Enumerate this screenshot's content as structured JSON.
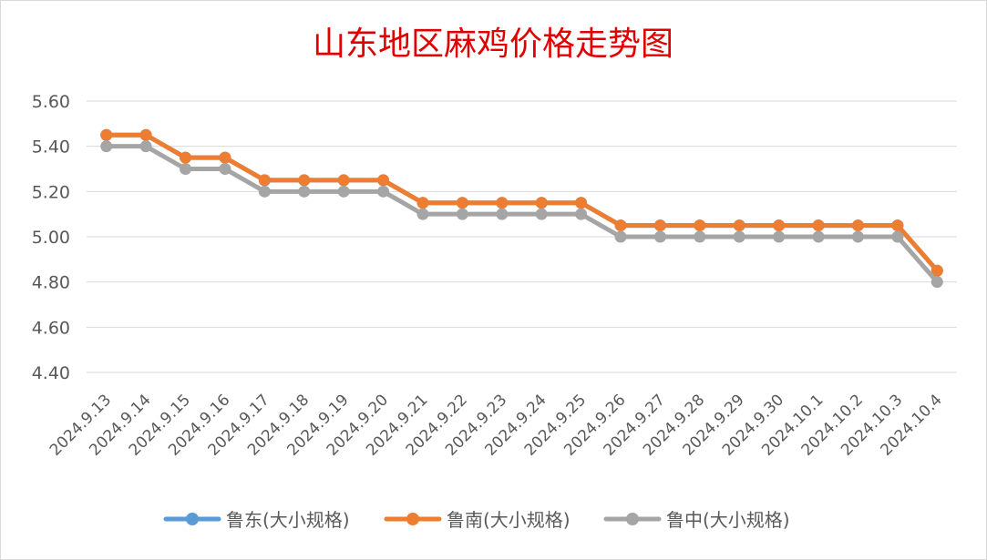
{
  "chart_data": {
    "type": "line",
    "title": "山东地区麻鸡价格走势图",
    "title_color": "#e00000",
    "categories": [
      "2024.9.13",
      "2024.9.14",
      "2024.9.15",
      "2024.9.16",
      "2024.9.17",
      "2024.9.18",
      "2024.9.19",
      "2024.9.20",
      "2024.9.21",
      "2024.9.22",
      "2024.9.23",
      "2024.9.24",
      "2024.9.25",
      "2024.9.26",
      "2024.9.27",
      "2024.9.28",
      "2024.9.29",
      "2024.9.30",
      "2024.10.1",
      "2024.10.2",
      "2024.10.3",
      "2024.10.4"
    ],
    "series": [
      {
        "name": "鲁东(大小规格)",
        "color": "#5b9bd5",
        "values": [
          5.45,
          5.45,
          5.35,
          5.35,
          5.25,
          5.25,
          5.25,
          5.25,
          5.15,
          5.15,
          5.15,
          5.15,
          5.15,
          5.05,
          5.05,
          5.05,
          5.05,
          5.05,
          5.05,
          5.05,
          5.05,
          4.85
        ]
      },
      {
        "name": "鲁南(大小规格)",
        "color": "#ed7d31",
        "values": [
          5.45,
          5.45,
          5.35,
          5.35,
          5.25,
          5.25,
          5.25,
          5.25,
          5.15,
          5.15,
          5.15,
          5.15,
          5.15,
          5.05,
          5.05,
          5.05,
          5.05,
          5.05,
          5.05,
          5.05,
          5.05,
          4.85
        ]
      },
      {
        "name": "鲁中(大小规格)",
        "color": "#a5a5a5",
        "values": [
          5.4,
          5.4,
          5.3,
          5.3,
          5.2,
          5.2,
          5.2,
          5.2,
          5.1,
          5.1,
          5.1,
          5.1,
          5.1,
          5.0,
          5.0,
          5.0,
          5.0,
          5.0,
          5.0,
          5.0,
          5.0,
          4.8
        ]
      }
    ],
    "ylim": [
      4.4,
      5.6
    ],
    "yticks": [
      "5.60",
      "5.40",
      "5.20",
      "5.00",
      "4.80",
      "4.60",
      "4.40"
    ],
    "ytick_values": [
      5.6,
      5.4,
      5.2,
      5.0,
      4.8,
      4.6,
      4.4
    ],
    "grid": true,
    "legend_position": "bottom"
  }
}
